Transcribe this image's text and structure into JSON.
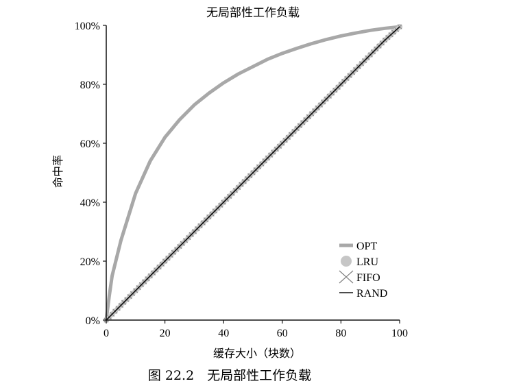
{
  "chart_data": {
    "type": "line",
    "title": "无局部性工作负载",
    "xlabel": "缓存大小（块数）",
    "ylabel": "命中率",
    "xlim": [
      0,
      100
    ],
    "ylim": [
      0,
      100
    ],
    "x_ticks": [
      "0",
      "20",
      "40",
      "60",
      "80",
      "100"
    ],
    "y_ticks": [
      "0%",
      "20%",
      "40%",
      "60%",
      "80%",
      "100%"
    ],
    "grid": false,
    "legend_position": "bottom-right",
    "x": [
      0,
      1,
      2,
      5,
      10,
      15,
      20,
      25,
      30,
      35,
      40,
      45,
      50,
      55,
      60,
      65,
      70,
      75,
      80,
      85,
      90,
      95,
      100
    ],
    "series": [
      {
        "name": "OPT",
        "color": "#a8a8a8",
        "values": [
          0,
          8,
          15,
          27,
          43,
          54,
          62,
          68,
          73,
          77,
          80.5,
          83.5,
          86,
          88.5,
          90.5,
          92.2,
          93.8,
          95.2,
          96.4,
          97.4,
          98.3,
          99.0,
          99.5
        ]
      },
      {
        "name": "LRU",
        "color": "#c6c6c6",
        "values": [
          0,
          1,
          2,
          5,
          10,
          15,
          20,
          25,
          30,
          35,
          40,
          45,
          50,
          55,
          60,
          65,
          70,
          75,
          80,
          85,
          90,
          95,
          99.5
        ]
      },
      {
        "name": "FIFO",
        "color": "#808080",
        "values": [
          0,
          1,
          2,
          5,
          10,
          15,
          20,
          25,
          30,
          35,
          40,
          45,
          50,
          55,
          60,
          65,
          70,
          75,
          80,
          85,
          90,
          95,
          99.5
        ]
      },
      {
        "name": "RAND",
        "color": "#111111",
        "values": [
          0,
          1,
          2,
          5,
          10,
          15,
          20,
          25,
          30,
          35,
          40,
          45,
          50,
          55,
          60,
          65,
          70,
          75,
          80,
          85,
          90,
          95,
          99.5
        ]
      }
    ]
  },
  "caption": "图 22.2　无局部性工作负载"
}
